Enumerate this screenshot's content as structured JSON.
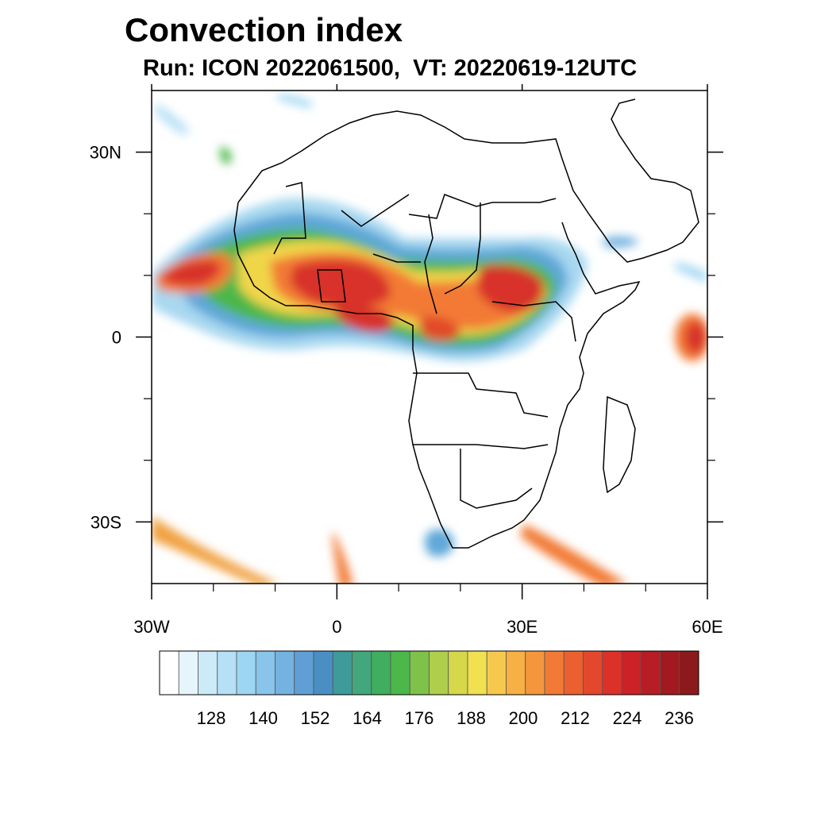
{
  "title": "Convection index",
  "subtitle": "Run: ICON 2022061500,  VT: 20220619-12UTC",
  "map": {
    "lon_range": [
      -30,
      60
    ],
    "lat_range": [
      -40,
      40
    ],
    "lon_ticks": [
      {
        "value": -30,
        "label": "30W"
      },
      {
        "value": 0,
        "label": "0"
      },
      {
        "value": 30,
        "label": "30E"
      },
      {
        "value": 60,
        "label": "60E"
      }
    ],
    "lat_ticks": [
      {
        "value": 30,
        "label": "30N"
      },
      {
        "value": 0,
        "label": "0"
      },
      {
        "value": -30,
        "label": "30S"
      }
    ],
    "lon_minor": [
      -20,
      -10,
      10,
      20,
      40,
      50
    ],
    "lat_minor": [
      20,
      10,
      -10,
      -20
    ]
  },
  "colorbar": {
    "labels": [
      "128",
      "140",
      "152",
      "164",
      "176",
      "188",
      "200",
      "212",
      "224",
      "236"
    ],
    "colors": [
      "#ffffff",
      "#e6f4fb",
      "#cceaf7",
      "#b5e0f5",
      "#9dd6f2",
      "#89c4ea",
      "#74b2e0",
      "#5f9fd5",
      "#4a8fc4",
      "#3f9a9a",
      "#43a77c",
      "#3fae5e",
      "#4cb74a",
      "#7fc24a",
      "#aece4c",
      "#d6d84a",
      "#f1e050",
      "#f6c94e",
      "#f6b044",
      "#f6963c",
      "#f27a35",
      "#ec6030",
      "#e4482c",
      "#dc3129",
      "#cc2127",
      "#b71d24",
      "#a21a20",
      "#8c1a1c"
    ]
  }
}
